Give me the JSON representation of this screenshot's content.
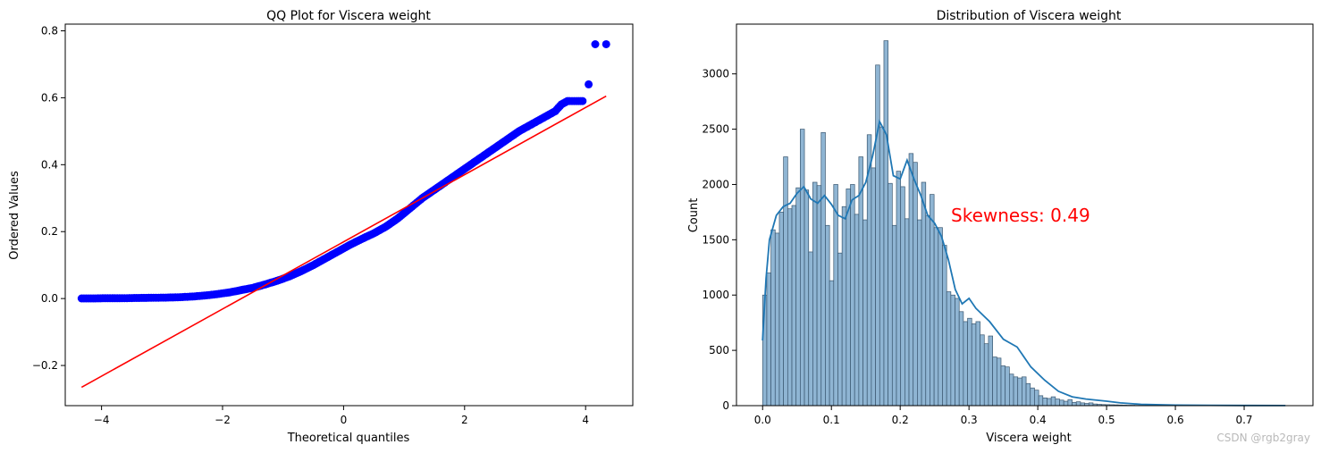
{
  "chart_data": [
    {
      "type": "scatter",
      "title": "QQ Plot for Viscera weight",
      "xlabel": "Theoretical quantiles",
      "ylabel": "Ordered Values",
      "xlim": [
        -4.6,
        4.78
      ],
      "ylim": [
        -0.32,
        0.82
      ],
      "xticks": [
        -4,
        -2,
        0,
        2,
        4
      ],
      "xtick_labels": [
        "−4",
        "−2",
        "0",
        "2",
        "4"
      ],
      "yticks": [
        -0.2,
        0.0,
        0.2,
        0.4,
        0.6,
        0.8
      ],
      "ytick_labels": [
        "−0.2",
        "0.0",
        "0.2",
        "0.4",
        "0.6",
        "0.8"
      ],
      "grid": false,
      "colors": {
        "points": "#0000ff",
        "fit_line": "#ff0000"
      },
      "series": [
        {
          "points": [
            [
              -4.33,
              0.0005
            ],
            [
              -4.1,
              0.0005
            ],
            [
              -3.9,
              0.001
            ],
            [
              -3.7,
              0.001
            ],
            [
              -3.5,
              0.0015
            ],
            [
              -3.3,
              0.002
            ],
            [
              -3.1,
              0.0025
            ],
            [
              -2.9,
              0.003
            ],
            [
              -2.7,
              0.004
            ],
            [
              -2.5,
              0.006
            ],
            [
              -2.3,
              0.009
            ],
            [
              -2.1,
              0.013
            ],
            [
              -1.9,
              0.018
            ],
            [
              -1.7,
              0.025
            ],
            [
              -1.5,
              0.032
            ],
            [
              -1.3,
              0.042
            ],
            [
              -1.1,
              0.053
            ],
            [
              -0.9,
              0.066
            ],
            [
              -0.7,
              0.082
            ],
            [
              -0.5,
              0.1
            ],
            [
              -0.3,
              0.12
            ],
            [
              -0.1,
              0.14
            ],
            [
              0.1,
              0.16
            ],
            [
              0.3,
              0.178
            ],
            [
              0.5,
              0.195
            ],
            [
              0.7,
              0.215
            ],
            [
              0.9,
              0.24
            ],
            [
              1.1,
              0.27
            ],
            [
              1.3,
              0.3
            ],
            [
              1.5,
              0.325
            ],
            [
              1.7,
              0.35
            ],
            [
              1.9,
              0.375
            ],
            [
              2.1,
              0.4
            ],
            [
              2.3,
              0.425
            ],
            [
              2.5,
              0.45
            ],
            [
              2.7,
              0.475
            ],
            [
              2.9,
              0.5
            ],
            [
              3.1,
              0.52
            ],
            [
              3.3,
              0.54
            ],
            [
              3.5,
              0.56
            ],
            [
              3.6,
              0.58
            ],
            [
              3.7,
              0.59
            ],
            [
              3.85,
              0.59
            ],
            [
              3.95,
              0.59
            ],
            [
              4.05,
              0.64
            ],
            [
              4.16,
              0.76
            ],
            [
              4.34,
              0.76
            ]
          ]
        },
        {
          "fit_line": [
            [
              -4.33,
              -0.265
            ],
            [
              4.34,
              0.605
            ]
          ]
        }
      ]
    },
    {
      "type": "bar",
      "title": "Distribution of Viscera weight",
      "xlabel": "Viscera weight",
      "ylabel": "Count",
      "xlim": [
        -0.038,
        0.8
      ],
      "ylim": [
        0,
        3450
      ],
      "xticks": [
        0.0,
        0.1,
        0.2,
        0.3,
        0.4,
        0.5,
        0.6,
        0.7
      ],
      "xtick_labels": [
        "0.0",
        "0.1",
        "0.2",
        "0.3",
        "0.4",
        "0.5",
        "0.6",
        "0.7"
      ],
      "yticks": [
        0,
        500,
        1000,
        1500,
        2000,
        2500,
        3000
      ],
      "ytick_labels": [
        "0",
        "500",
        "1000",
        "1500",
        "2000",
        "2500",
        "3000"
      ],
      "grid": false,
      "bin_start": 0.0,
      "bin_width": 0.00608,
      "counts": [
        1000,
        1200,
        1590,
        1560,
        1750,
        2250,
        1780,
        1810,
        1970,
        2500,
        1950,
        1390,
        2020,
        1990,
        2470,
        1630,
        1130,
        2000,
        1380,
        1800,
        1960,
        2000,
        1730,
        2250,
        1680,
        2450,
        2150,
        3080,
        2520,
        3300,
        2010,
        1630,
        2120,
        1980,
        1690,
        2280,
        2200,
        1680,
        2020,
        1720,
        1910,
        1610,
        1610,
        1450,
        1030,
        1000,
        970,
        850,
        760,
        790,
        740,
        760,
        640,
        560,
        630,
        440,
        430,
        360,
        350,
        285,
        260,
        250,
        260,
        200,
        160,
        140,
        90,
        70,
        65,
        80,
        60,
        50,
        40,
        55,
        30,
        35,
        25,
        20,
        25,
        15,
        12,
        10,
        9,
        8,
        7,
        6,
        5,
        4,
        4,
        3,
        3,
        2,
        2,
        2,
        2,
        2,
        2,
        2,
        2,
        2,
        2,
        2,
        2,
        2,
        1,
        1,
        1,
        1,
        1,
        1,
        1,
        1,
        1,
        1,
        1,
        1,
        1,
        1,
        1,
        1,
        1,
        1,
        1,
        1,
        1
      ],
      "kde": [
        [
          0.0,
          590
        ],
        [
          0.005,
          1150
        ],
        [
          0.01,
          1500
        ],
        [
          0.02,
          1720
        ],
        [
          0.03,
          1800
        ],
        [
          0.04,
          1830
        ],
        [
          0.05,
          1920
        ],
        [
          0.06,
          1980
        ],
        [
          0.07,
          1870
        ],
        [
          0.08,
          1830
        ],
        [
          0.09,
          1900
        ],
        [
          0.1,
          1820
        ],
        [
          0.11,
          1720
        ],
        [
          0.12,
          1690
        ],
        [
          0.13,
          1860
        ],
        [
          0.14,
          1900
        ],
        [
          0.15,
          2020
        ],
        [
          0.16,
          2260
        ],
        [
          0.17,
          2570
        ],
        [
          0.18,
          2450
        ],
        [
          0.19,
          2080
        ],
        [
          0.2,
          2050
        ],
        [
          0.21,
          2220
        ],
        [
          0.22,
          2050
        ],
        [
          0.23,
          1900
        ],
        [
          0.24,
          1720
        ],
        [
          0.25,
          1650
        ],
        [
          0.26,
          1530
        ],
        [
          0.27,
          1320
        ],
        [
          0.28,
          1050
        ],
        [
          0.29,
          920
        ],
        [
          0.3,
          970
        ],
        [
          0.31,
          880
        ],
        [
          0.33,
          760
        ],
        [
          0.35,
          600
        ],
        [
          0.37,
          530
        ],
        [
          0.39,
          350
        ],
        [
          0.41,
          230
        ],
        [
          0.43,
          130
        ],
        [
          0.45,
          80
        ],
        [
          0.47,
          60
        ],
        [
          0.5,
          40
        ],
        [
          0.52,
          25
        ],
        [
          0.55,
          12
        ],
        [
          0.6,
          5
        ],
        [
          0.65,
          3
        ],
        [
          0.7,
          2
        ],
        [
          0.76,
          1
        ]
      ],
      "colors": {
        "bars": "#8fb5d3",
        "bar_edge": "#3a5770",
        "kde": "#1f77b4",
        "annotation": "#ff0000"
      },
      "annotation": "Skewness: 0.49"
    }
  ],
  "watermark": "CSDN @rgb2gray"
}
